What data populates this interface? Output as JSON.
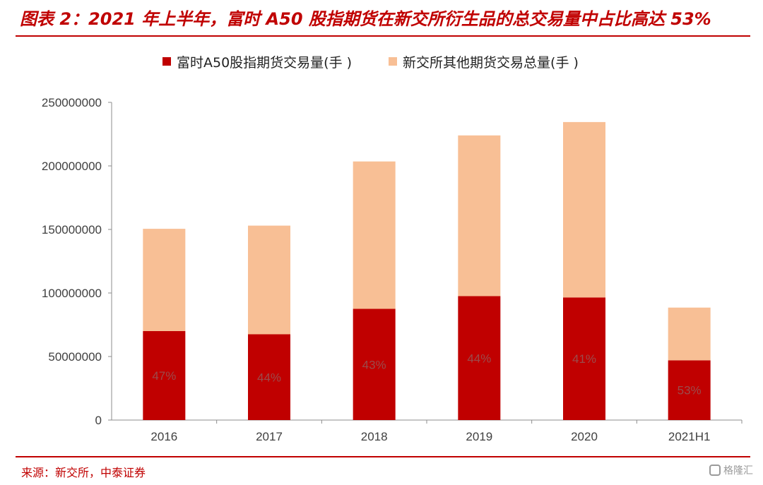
{
  "header": {
    "title": "图表 2：2021 年上半年，富时 A50 股指期货在新交所衍生品的总交易量中占比高达 53%"
  },
  "footer": {
    "source": "来源：新交所，中泰证券",
    "watermark": "格隆汇"
  },
  "colors": {
    "accent": "#c00000",
    "a50": "#c00000",
    "other": "#f8bf95"
  },
  "chart_data": {
    "type": "bar",
    "stacked": true,
    "categories": [
      "2016",
      "2017",
      "2018",
      "2019",
      "2020",
      "2021H1"
    ],
    "series": [
      {
        "name": "富时A50股指期货交易量(手 )",
        "values": [
          70000000,
          67500000,
          87500000,
          97500000,
          96500000,
          47000000
        ],
        "labels": [
          "47%",
          "44%",
          "43%",
          "44%",
          "41%",
          "53%"
        ]
      },
      {
        "name": "新交所其他期货交易总量(手 )",
        "values": [
          80500000,
          85500000,
          116000000,
          126500000,
          138000000,
          41500000
        ]
      }
    ],
    "ylim": [
      0,
      250000000
    ],
    "yticks": [
      "0",
      "50000000",
      "100000000",
      "150000000",
      "200000000",
      "250000000"
    ],
    "grid": false,
    "legend": "top"
  }
}
